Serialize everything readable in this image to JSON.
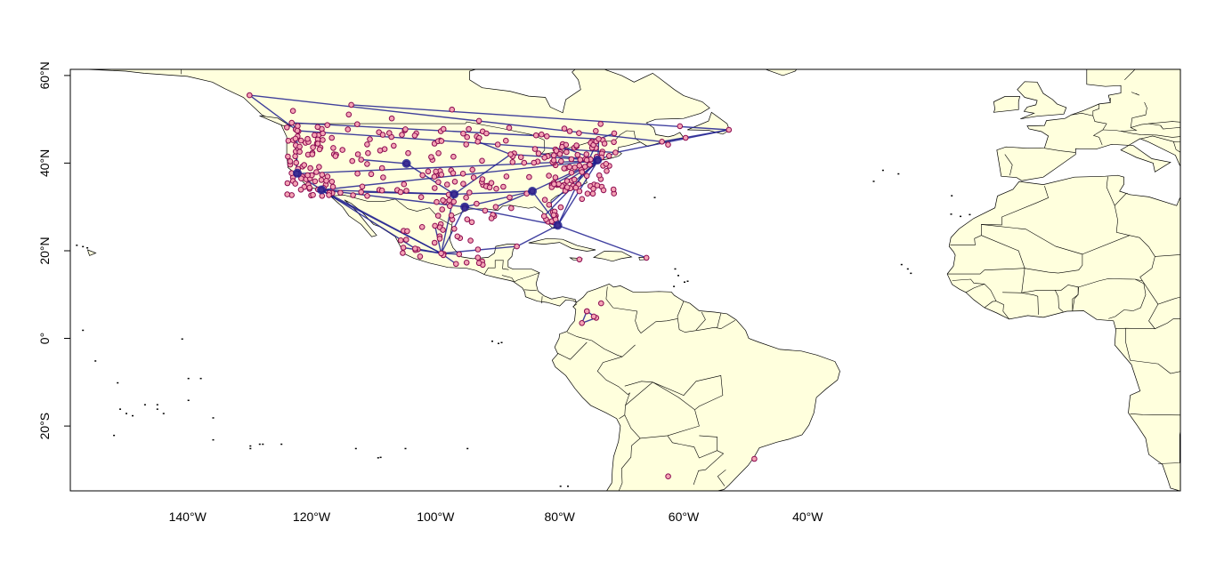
{
  "map": {
    "colors": {
      "land": "#FFFFDD",
      "border": "#000000",
      "route": "#1F1F8F",
      "airport_fill": "#F4A3B4",
      "airport_stroke": "#8B0A50",
      "background": "#FFFFFF"
    },
    "projection": "equirectangular",
    "xlim": [
      -160,
      20
    ],
    "ylim": [
      -35,
      62
    ],
    "x_ticks": [
      {
        "value": -140,
        "label": "140°W"
      },
      {
        "value": -120,
        "label": "120°W"
      },
      {
        "value": -100,
        "label": "100°W"
      },
      {
        "value": -80,
        "label": "80°W"
      },
      {
        "value": -60,
        "label": "60°W"
      },
      {
        "value": -40,
        "label": "40°W"
      }
    ],
    "y_ticks": [
      {
        "value": 60,
        "label": "60°N"
      },
      {
        "value": 40,
        "label": "40°N"
      },
      {
        "value": 20,
        "label": "20°N"
      },
      {
        "value": 0,
        "label": "0°"
      },
      {
        "value": -20,
        "label": "20°S"
      }
    ],
    "layers": [
      "country-borders",
      "flight-routes",
      "airport-points"
    ]
  }
}
